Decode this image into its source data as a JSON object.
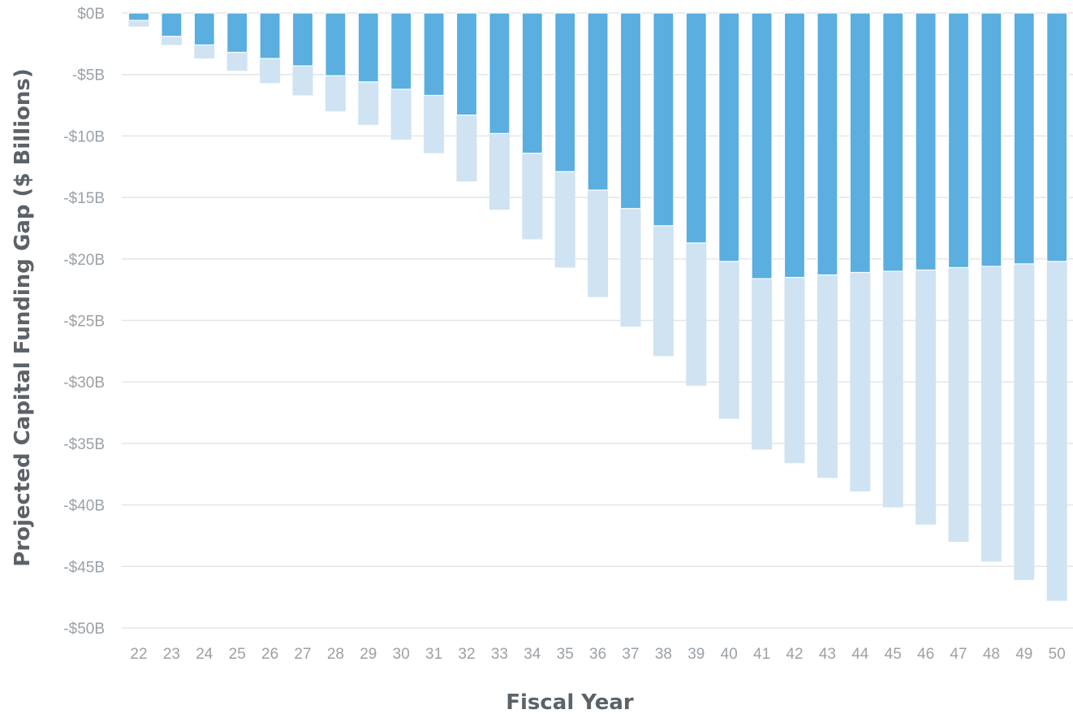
{
  "chart_data": {
    "type": "bar",
    "stacked": "overlay",
    "xlabel": "Fiscal Year",
    "ylabel": "Projected Capital Funding Gap ($ Billions)",
    "ylim": [
      -50,
      0
    ],
    "ytick_values": [
      0,
      -5,
      -10,
      -15,
      -20,
      -25,
      -30,
      -35,
      -40,
      -45,
      -50
    ],
    "ytick_labels": [
      "$0B",
      "-$5B",
      "-$10B",
      "-$15B",
      "-$20B",
      "-$25B",
      "-$30B",
      "-$35B",
      "-$40B",
      "-$45B",
      "-$50B"
    ],
    "grid": true,
    "categories": [
      "22",
      "23",
      "24",
      "25",
      "26",
      "27",
      "28",
      "29",
      "30",
      "31",
      "32",
      "33",
      "34",
      "35",
      "36",
      "37",
      "38",
      "39",
      "40",
      "41",
      "42",
      "43",
      "44",
      "45",
      "46",
      "47",
      "48",
      "49",
      "50"
    ],
    "series": [
      {
        "color": "#5aaee0",
        "values": [
          -0.6,
          -1.9,
          -2.6,
          -3.2,
          -3.7,
          -4.3,
          -5.1,
          -5.6,
          -6.2,
          -6.7,
          -8.3,
          -9.8,
          -11.4,
          -12.9,
          -14.4,
          -15.9,
          -17.3,
          -18.7,
          -20.2,
          -21.6,
          -21.5,
          -21.3,
          -21.1,
          -21.0,
          -20.9,
          -20.7,
          -20.6,
          -20.4,
          -20.2
        ]
      },
      {
        "color": "#cfe3f2",
        "values": [
          -1.1,
          -2.6,
          -3.7,
          -4.7,
          -5.7,
          -6.7,
          -8.0,
          -9.1,
          -10.3,
          -11.4,
          -13.7,
          -16.0,
          -18.4,
          -20.7,
          -23.1,
          -25.5,
          -27.9,
          -30.3,
          -33.0,
          -35.5,
          -36.6,
          -37.8,
          -38.9,
          -40.2,
          -41.6,
          -43.0,
          -44.6,
          -46.1,
          -47.8
        ]
      }
    ]
  }
}
